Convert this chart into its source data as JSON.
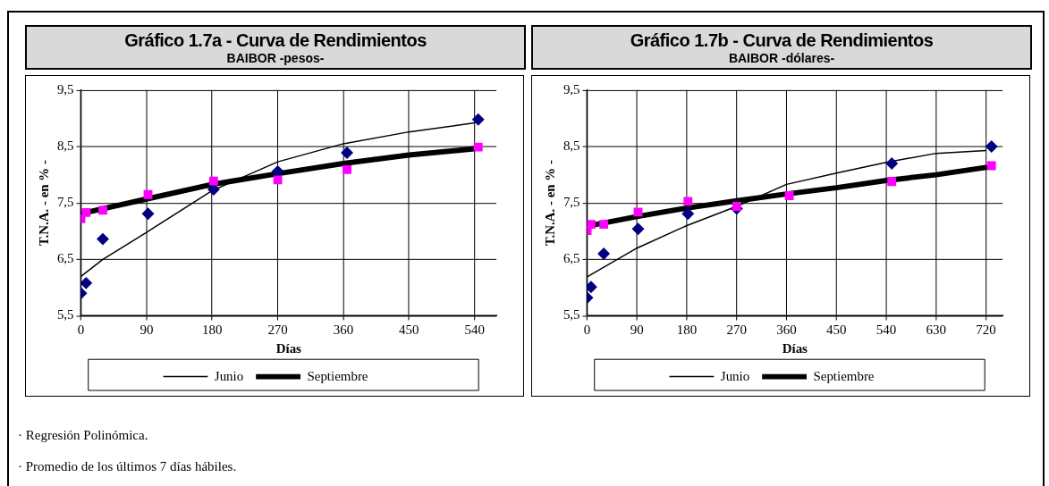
{
  "chart_data": [
    {
      "type": "line",
      "title": "Gráfico 1.7a - Curva de Rendimientos",
      "subtitle": "BAIBOR -pesos-",
      "xlabel": "Días",
      "ylabel": "T.N.A. - en % -",
      "xlim": [
        0,
        570
      ],
      "xticks": [
        0,
        90,
        180,
        270,
        360,
        450,
        540
      ],
      "ylim": [
        5.5,
        9.5
      ],
      "yticks": [
        {
          "value": 5.5,
          "label": "5,5"
        },
        {
          "value": 6.5,
          "label": "6,5"
        },
        {
          "value": 7.5,
          "label": "7,5"
        },
        {
          "value": 8.5,
          "label": "8,5"
        },
        {
          "value": 9.5,
          "label": "9,5"
        }
      ],
      "grid": true,
      "legend": "bottom",
      "line_style": "solid",
      "series": [
        {
          "type": "scatter",
          "color": "#000080",
          "marker": "diamond",
          "x": [
            0,
            7,
            30,
            92,
            182,
            270,
            365,
            545
          ],
          "values": [
            5.9,
            6.08,
            6.86,
            7.31,
            7.74,
            8.06,
            8.39,
            8.98
          ]
        },
        {
          "type": "scatter",
          "color": "#ff00ff",
          "marker": "square",
          "x": [
            0,
            7,
            30,
            92,
            182,
            270,
            365,
            545
          ],
          "values": [
            7.22,
            7.33,
            7.37,
            7.65,
            7.89,
            7.91,
            8.09,
            8.49
          ]
        },
        {
          "name": "Junio",
          "color": "#000000",
          "marker": "none",
          "x": [
            0,
            30,
            90,
            180,
            270,
            360,
            450,
            540
          ],
          "values": [
            6.2,
            6.5,
            6.98,
            7.72,
            8.23,
            8.55,
            8.76,
            8.92
          ]
        },
        {
          "name": "Septiembre",
          "color": "#000000",
          "marker": "none",
          "x": [
            0,
            90,
            180,
            270,
            360,
            450,
            540
          ],
          "values": [
            7.31,
            7.57,
            7.83,
            8.02,
            8.2,
            8.35,
            8.46
          ]
        }
      ],
      "annotations": [
        "· Regresión Polinómica.",
        "· Promedio de los últimos 7 días hábiles."
      ]
    },
    {
      "type": "line",
      "title": "Gráfico 1.7b - Curva de Rendimientos",
      "subtitle": "BAIBOR -dólares-",
      "xlabel": "Días",
      "ylabel": "T.N.A. - en % -",
      "xlim": [
        0,
        750
      ],
      "xticks": [
        0,
        90,
        180,
        270,
        360,
        450,
        540,
        630,
        720
      ],
      "ylim": [
        5.5,
        9.5
      ],
      "yticks": [
        {
          "value": 5.5,
          "label": "5,5"
        },
        {
          "value": 6.5,
          "label": "6,5"
        },
        {
          "value": 7.5,
          "label": "7,5"
        },
        {
          "value": 8.5,
          "label": "8,5"
        },
        {
          "value": 9.5,
          "label": "9,5"
        }
      ],
      "grid": true,
      "legend": "bottom",
      "line_style": "solid",
      "series": [
        {
          "type": "scatter",
          "color": "#000080",
          "marker": "diamond",
          "x": [
            0,
            7,
            30,
            92,
            182,
            270,
            365,
            550,
            730
          ],
          "values": [
            5.82,
            6.01,
            6.6,
            7.04,
            7.31,
            7.4,
            null,
            8.2,
            8.5
          ]
        },
        {
          "type": "scatter",
          "color": "#ff00ff",
          "marker": "square",
          "x": [
            0,
            7,
            30,
            92,
            182,
            270,
            365,
            550,
            730
          ],
          "values": [
            7.01,
            7.12,
            7.12,
            7.34,
            7.53,
            7.44,
            7.63,
            7.88,
            8.16
          ]
        },
        {
          "name": "Junio",
          "color": "#000000",
          "marker": "none",
          "x": [
            0,
            90,
            180,
            270,
            360,
            450,
            540,
            630,
            720
          ],
          "values": [
            6.19,
            6.7,
            7.1,
            7.44,
            7.83,
            8.03,
            8.22,
            8.38,
            8.43
          ]
        },
        {
          "name": "Septiembre",
          "color": "#000000",
          "marker": "none",
          "x": [
            0,
            90,
            180,
            270,
            360,
            450,
            540,
            630,
            720
          ],
          "values": [
            7.09,
            7.26,
            7.41,
            7.54,
            7.66,
            7.77,
            7.9,
            8.0,
            8.13
          ]
        }
      ]
    }
  ]
}
